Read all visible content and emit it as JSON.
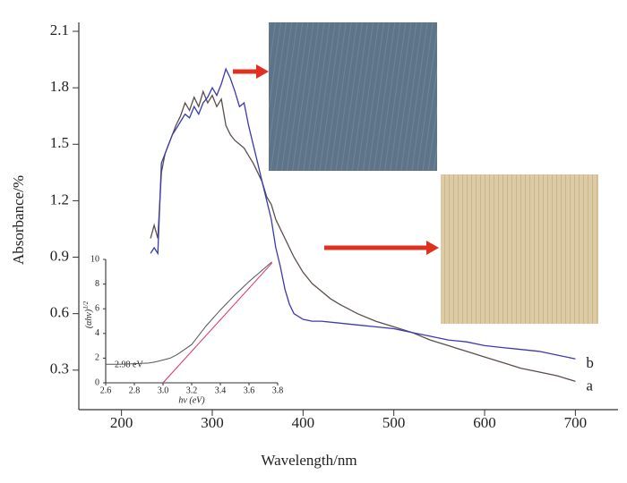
{
  "chart_data": [
    {
      "type": "line",
      "xlabel": "Wavelength/nm",
      "ylabel": "Absorbance/%",
      "xlim": [
        153,
        747
      ],
      "ylim": [
        0.09,
        2.1
      ],
      "xticks": [
        200,
        300,
        400,
        500,
        600,
        700
      ],
      "yticks": [
        0.3,
        0.6,
        0.9,
        1.2,
        1.5,
        1.8,
        2.1
      ],
      "series": [
        {
          "name": "a",
          "color": "#5a4e4a",
          "x": [
            232,
            236,
            240,
            244,
            248,
            252,
            256,
            260,
            265,
            270,
            275,
            280,
            285,
            290,
            295,
            300,
            305,
            310,
            315,
            320,
            325,
            330,
            335,
            340,
            345,
            350,
            355,
            360,
            365,
            370,
            375,
            380,
            390,
            400,
            410,
            420,
            430,
            440,
            460,
            480,
            500,
            520,
            540,
            560,
            580,
            600,
            620,
            640,
            660,
            680,
            700
          ],
          "values": [
            1.0,
            1.07,
            1.0,
            1.35,
            1.45,
            1.5,
            1.55,
            1.6,
            1.65,
            1.72,
            1.68,
            1.75,
            1.7,
            1.78,
            1.72,
            1.76,
            1.7,
            1.74,
            1.6,
            1.55,
            1.52,
            1.5,
            1.48,
            1.44,
            1.4,
            1.35,
            1.3,
            1.22,
            1.18,
            1.1,
            1.05,
            1.0,
            0.9,
            0.82,
            0.76,
            0.72,
            0.68,
            0.65,
            0.6,
            0.56,
            0.53,
            0.5,
            0.46,
            0.43,
            0.4,
            0.37,
            0.34,
            0.31,
            0.29,
            0.27,
            0.24
          ]
        },
        {
          "name": "b",
          "color": "#3a3ab0",
          "x": [
            232,
            236,
            240,
            244,
            248,
            252,
            256,
            260,
            265,
            270,
            275,
            280,
            285,
            290,
            295,
            300,
            305,
            310,
            315,
            320,
            325,
            330,
            335,
            340,
            345,
            350,
            355,
            360,
            365,
            370,
            375,
            380,
            385,
            390,
            400,
            410,
            420,
            440,
            460,
            480,
            500,
            520,
            540,
            560,
            580,
            600,
            620,
            640,
            660,
            680,
            700
          ],
          "values": [
            0.92,
            0.95,
            0.92,
            1.4,
            1.45,
            1.5,
            1.55,
            1.58,
            1.62,
            1.66,
            1.64,
            1.7,
            1.66,
            1.72,
            1.75,
            1.8,
            1.76,
            1.82,
            1.9,
            1.85,
            1.78,
            1.7,
            1.72,
            1.6,
            1.5,
            1.4,
            1.3,
            1.2,
            1.1,
            0.95,
            0.85,
            0.73,
            0.65,
            0.6,
            0.57,
            0.56,
            0.56,
            0.55,
            0.54,
            0.53,
            0.52,
            0.5,
            0.48,
            0.46,
            0.45,
            0.43,
            0.42,
            0.41,
            0.4,
            0.38,
            0.36
          ]
        }
      ]
    },
    {
      "type": "line",
      "xlabel": "hν (eV)",
      "ylabel": "(αhν)",
      "ylabel_sup": "1/2",
      "annotation": "2.98 eV",
      "xlim": [
        2.6,
        3.8
      ],
      "ylim": [
        0,
        10
      ],
      "xticks": [
        2.6,
        2.8,
        {
          "value": 3.0,
          "label": "3.0"
        },
        3.2,
        3.4,
        3.6,
        3.8
      ],
      "yticks": [
        0,
        2,
        4,
        6,
        8,
        10
      ],
      "series": [
        {
          "color": "#555555",
          "x": [
            2.6,
            2.7,
            2.8,
            2.9,
            2.95,
            3.0,
            3.05,
            3.1,
            3.15,
            3.2,
            3.3,
            3.4,
            3.5,
            3.6,
            3.7,
            3.76
          ],
          "values": [
            1.5,
            1.5,
            1.55,
            1.6,
            1.7,
            1.85,
            2.0,
            2.3,
            2.7,
            3.1,
            4.6,
            5.9,
            7.1,
            8.2,
            9.2,
            9.8
          ]
        },
        {
          "color": "#e0306a",
          "x": [
            3.0,
            3.76
          ],
          "values": [
            0,
            9.7
          ]
        }
      ]
    }
  ]
}
